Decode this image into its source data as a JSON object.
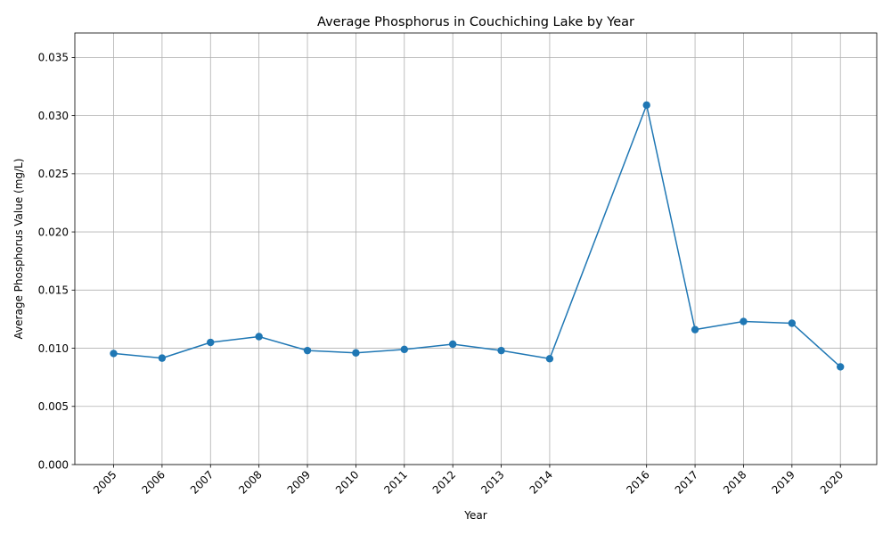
{
  "chart_data": {
    "type": "line",
    "title": "Average Phosphorus in Couchiching Lake by Year",
    "xlabel": "Year",
    "ylabel": "Average Phosphorus Value (mg/L)",
    "x": [
      2005,
      2006,
      2007,
      2008,
      2009,
      2010,
      2011,
      2012,
      2013,
      2014,
      2016,
      2017,
      2018,
      2019,
      2020
    ],
    "xtick_labels": [
      "2005",
      "2006",
      "2007",
      "2008",
      "2009",
      "2010",
      "2011",
      "2012",
      "2013",
      "2014",
      "2016",
      "2017",
      "2018",
      "2019",
      "2020"
    ],
    "series": [
      {
        "values": [
          0.00955,
          0.00915,
          0.0105,
          0.011,
          0.0098,
          0.0096,
          0.0099,
          0.01035,
          0.0098,
          0.0091,
          0.0309,
          0.0116,
          0.0123,
          0.01215,
          0.0084
        ],
        "color": "#1f77b4",
        "marker": "circle"
      }
    ],
    "xlim": [
      2004.2,
      2020.75
    ],
    "ylim": [
      0,
      0.0371
    ],
    "yticks": [
      0.0,
      0.005,
      0.01,
      0.015,
      0.02,
      0.025,
      0.03,
      0.035
    ],
    "ytick_labels": [
      "0.000",
      "0.005",
      "0.010",
      "0.015",
      "0.020",
      "0.025",
      "0.030",
      "0.035"
    ],
    "grid": true,
    "xtick_rotation": 45
  }
}
